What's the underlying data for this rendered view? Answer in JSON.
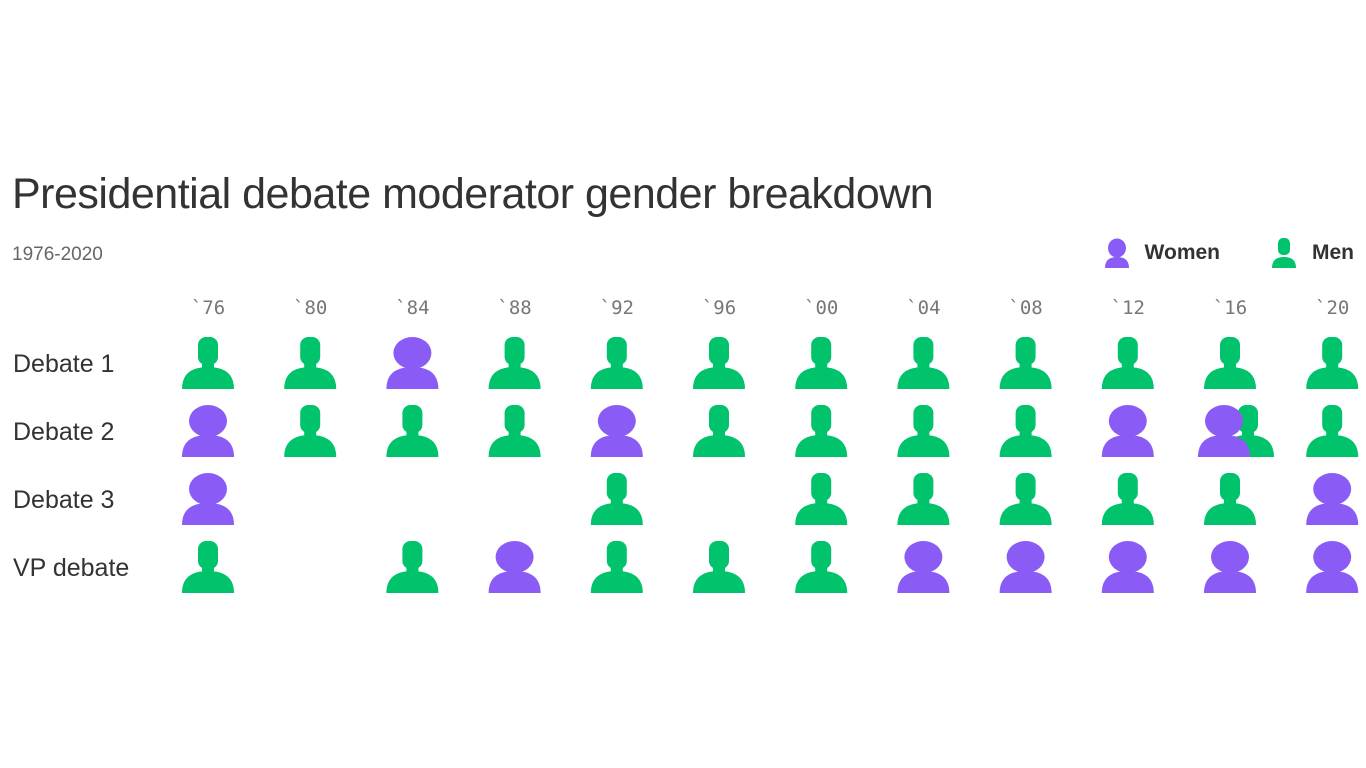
{
  "chart_data": {
    "type": "table",
    "title": "Presidential debate moderator gender breakdown",
    "subtitle": "1976-2020",
    "legend": [
      {
        "name": "Women",
        "color": "#8a5cf5"
      },
      {
        "name": "Men",
        "color": "#00c36b"
      }
    ],
    "legend_position": "top-right",
    "columns": [
      "`76",
      "`80",
      "`84",
      "`88",
      "`92",
      "`96",
      "`00",
      "`04",
      "`08",
      "`12",
      "`16",
      "`20"
    ],
    "rows": [
      {
        "label": "Debate 1",
        "cells": [
          "M",
          "M",
          "W",
          "M",
          "M",
          "M",
          "M",
          "M",
          "M",
          "M",
          "M",
          "M"
        ]
      },
      {
        "label": "Debate 2",
        "cells": [
          "W",
          "M",
          "M",
          "M",
          "W",
          "M",
          "M",
          "M",
          "M",
          "W",
          "WM",
          "M"
        ]
      },
      {
        "label": "Debate 3",
        "cells": [
          "W",
          "",
          "",
          "",
          "M",
          "",
          "M",
          "M",
          "M",
          "M",
          "M",
          "W"
        ]
      },
      {
        "label": "VP debate",
        "cells": [
          "M",
          "",
          "M",
          "W",
          "M",
          "M",
          "M",
          "W",
          "W",
          "W",
          "W",
          "W"
        ]
      }
    ],
    "cell_legend": {
      "M": "Men",
      "W": "Women",
      "WM": "Women and Men"
    }
  }
}
